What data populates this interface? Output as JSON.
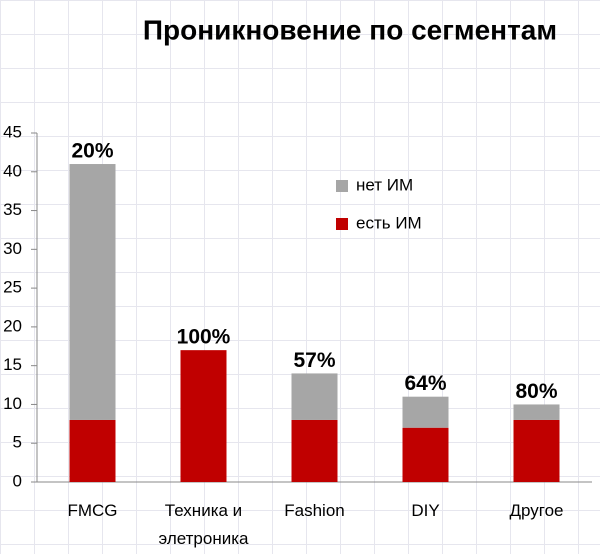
{
  "chart_data": {
    "type": "stacked_bar",
    "title": "Проникновение по сегментам",
    "categories": [
      "FMCG",
      "Техника и элетроника",
      "Fashion",
      "DIY",
      "Другое"
    ],
    "series": [
      {
        "name": "есть ИМ",
        "color": "#c00000",
        "values": [
          8,
          17,
          8,
          7,
          8
        ]
      },
      {
        "name": "нет ИМ",
        "color": "#a6a6a6",
        "values": [
          33,
          0,
          6,
          4,
          2
        ]
      }
    ],
    "share_labels": [
      "20%",
      "100%",
      "57%",
      "64%",
      "80%"
    ],
    "ylim": [
      0,
      45
    ],
    "yticks": [
      0,
      5,
      10,
      15,
      20,
      25,
      30,
      35,
      40,
      45
    ],
    "grid": false
  }
}
